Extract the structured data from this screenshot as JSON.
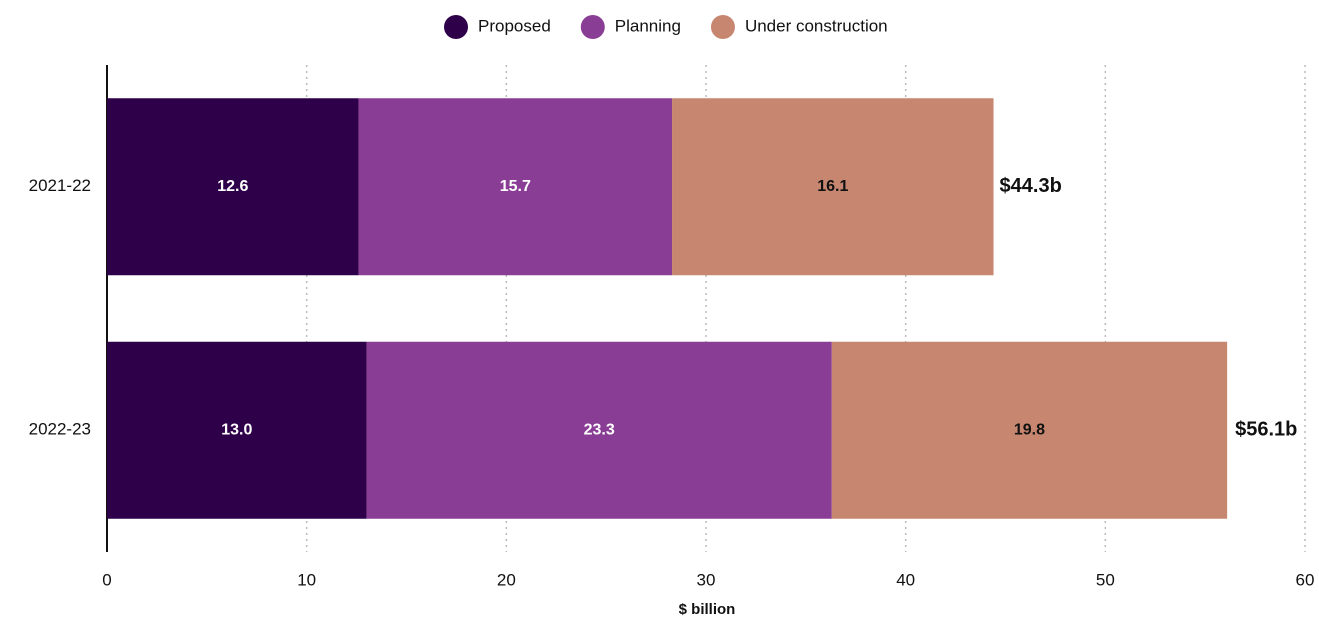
{
  "chart_data": {
    "type": "stacked-bar-horizontal",
    "categories": [
      "2021-22",
      "2022-23"
    ],
    "series": [
      {
        "name": "Proposed",
        "color": "#2e0049",
        "label_color": "#ffffff",
        "values": [
          12.6,
          13.0
        ],
        "value_labels": [
          "12.6",
          "13.0"
        ]
      },
      {
        "name": "Planning",
        "color": "#8a3d94",
        "label_color": "#ffffff",
        "values": [
          15.7,
          23.3
        ]
      },
      {
        "name": "Under construction",
        "color": "#c6866f",
        "label_color": "#111111",
        "values": [
          16.1,
          19.8
        ]
      }
    ],
    "totals": {
      "values": [
        44.3,
        56.1
      ],
      "value_labels": [
        "$44.3b",
        "$56.1b"
      ]
    },
    "xlabel": "$ billion",
    "xlim": [
      0,
      60
    ],
    "xticks": [
      0,
      10,
      20,
      30,
      40,
      50,
      60
    ],
    "grid": true,
    "legend": "top"
  }
}
